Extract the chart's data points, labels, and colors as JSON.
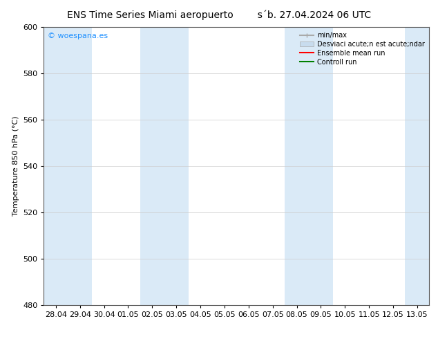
{
  "title_left": "ENS Time Series Miami aeropuerto",
  "title_right": "s´b. 27.04.2024 06 UTC",
  "ylabel": "Temperature 850 hPa (°C)",
  "ylim": [
    480,
    600
  ],
  "yticks": [
    480,
    500,
    520,
    540,
    560,
    580,
    600
  ],
  "xlim": [
    0,
    16
  ],
  "xtick_labels": [
    "28.04",
    "29.04",
    "30.04",
    "01.05",
    "02.05",
    "03.05",
    "04.05",
    "05.05",
    "06.05",
    "07.05",
    "08.05",
    "09.05",
    "10.05",
    "11.05",
    "12.05",
    "13.05"
  ],
  "xtick_positions": [
    0.5,
    1.5,
    2.5,
    3.5,
    4.5,
    5.5,
    6.5,
    7.5,
    8.5,
    9.5,
    10.5,
    11.5,
    12.5,
    13.5,
    14.5,
    15.5
  ],
  "shaded_cols": [
    0,
    1,
    4,
    5,
    10,
    11,
    15
  ],
  "shaded_color": "#daeaf7",
  "background_color": "#ffffff",
  "plot_bg_color": "#ffffff",
  "watermark_text": "© woespana.es",
  "watermark_color": "#1e90ff",
  "legend_labels": [
    "min/max",
    "Desviaci acute;n est acute;ndar",
    "Ensemble mean run",
    "Controll run"
  ],
  "legend_minmax_color": "#aaaaaa",
  "legend_std_color": "#c8dcee",
  "legend_ensemble_color": "#ff0000",
  "legend_control_color": "#008000",
  "title_fontsize": 10,
  "axis_fontsize": 8,
  "tick_fontsize": 8
}
